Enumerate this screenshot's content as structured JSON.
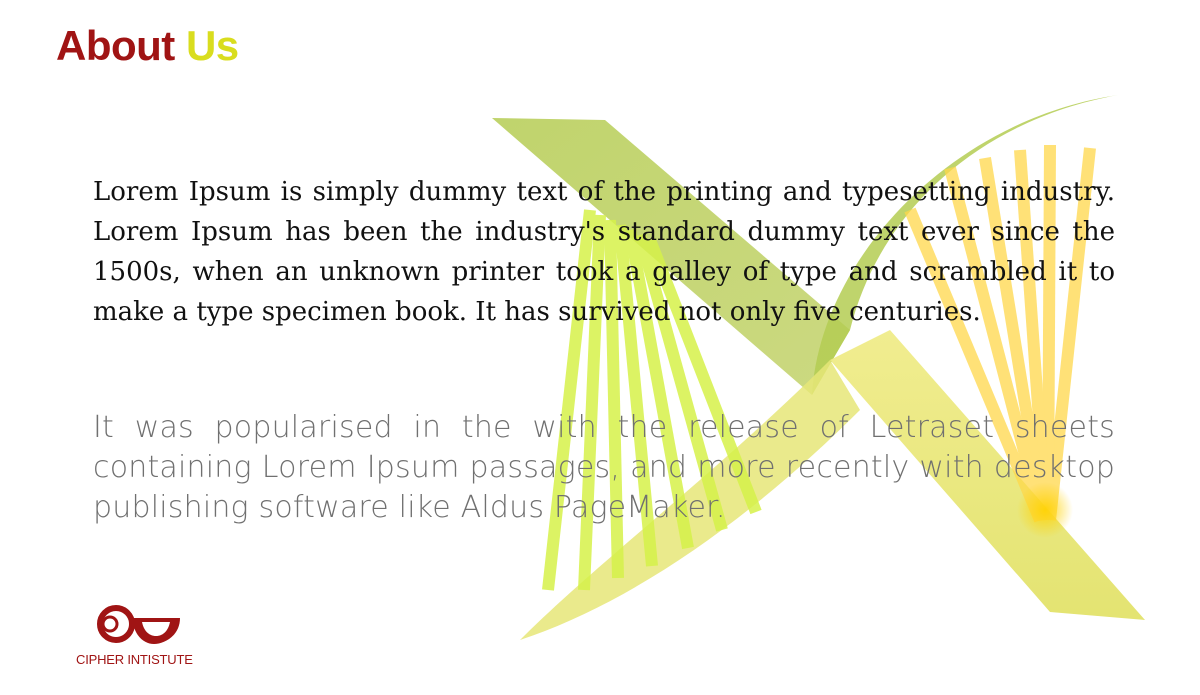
{
  "title": {
    "word1": "About",
    "word2": "Us"
  },
  "paragraph1": "Lorem Ipsum is simply dummy text of the printing and typesetting industry. Lorem Ipsum has been the industry's standard dummy text ever since the 1500s, when an unknown printer took a galley of type and scrambled it to make a type specimen book. It has survived not only five centuries.",
  "paragraph2": "It was popularised in the with the release of Letraset sheets containing Lorem Ipsum passages, and more recently with desktop publishing software like Aldus PageMaker.",
  "logo": {
    "text": "CIPHER INTISTUTE",
    "icon": "cipher-logo-icon"
  },
  "colors": {
    "title_primary": "#a01414",
    "title_accent": "#d9dd1e",
    "helix_green": "#b8cf5a",
    "ray_lime": "#d6f24a",
    "ray_yellow": "#ffd84a"
  }
}
